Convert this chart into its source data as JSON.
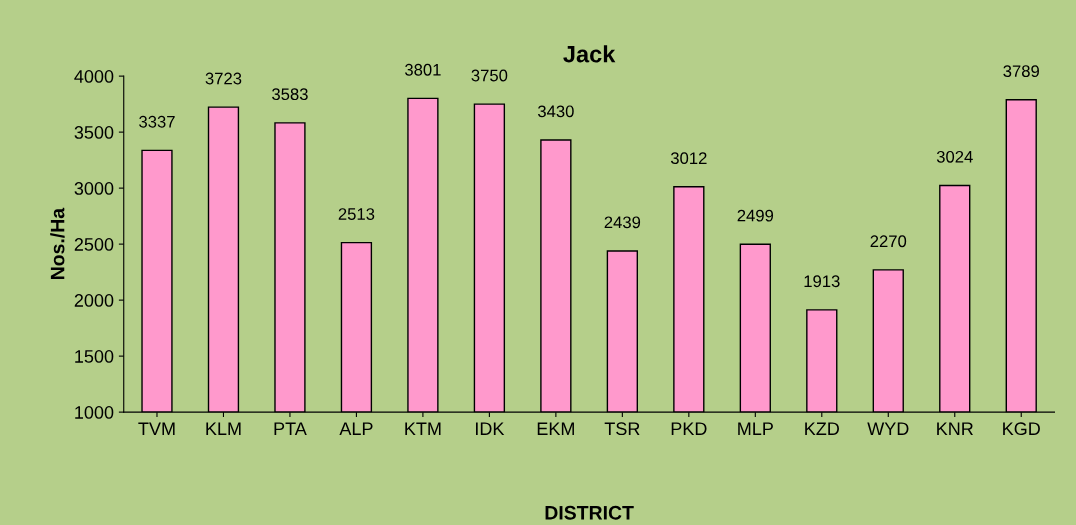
{
  "chart_data": {
    "type": "bar",
    "title": "Jack",
    "xlabel": "DISTRICT",
    "ylabel": "Nos./Ha",
    "categories": [
      "TVM",
      "KLM",
      "PTA",
      "ALP",
      "KTM",
      "IDK",
      "EKM",
      "TSR",
      "PKD",
      "MLP",
      "KZD",
      "WYD",
      "KNR",
      "KGD"
    ],
    "values": [
      3337,
      3723,
      3583,
      2513,
      3801,
      3750,
      3430,
      2439,
      3012,
      2499,
      1913,
      2270,
      3024,
      3789
    ],
    "color": "#ff99cc",
    "ylim": [
      1000,
      4000
    ],
    "yticks": [
      1000,
      1500,
      2000,
      2500,
      3000,
      3500,
      4000
    ],
    "grid": false,
    "legend": false,
    "data_labels": true
  }
}
